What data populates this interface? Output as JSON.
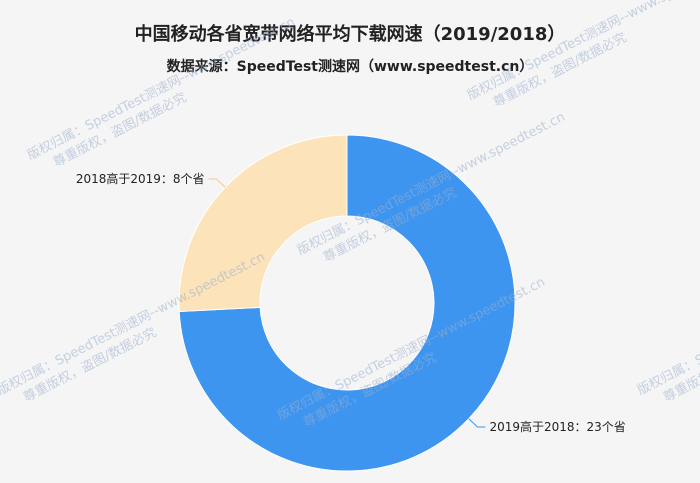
{
  "chart_data": {
    "type": "pie",
    "title": "中国移动各省宽带网络平均下载网速（2019/2018）",
    "subtitle": "数据来源：SpeedTest测速网（www.speedtest.cn）",
    "series": [
      {
        "values": [
          {
            "label": "2019高于2018：23个省",
            "value": 23,
            "color": "#3d95ef"
          },
          {
            "label": "2018高于2019：8个省",
            "value": 8,
            "color": "#fde3b9"
          }
        ]
      }
    ],
    "donut": true,
    "legend": "none"
  },
  "watermark": {
    "line1": "版权归属：SpeedTest测速网--www.speedtest.cn",
    "line2": "尊重版权，盗图/数据必究"
  }
}
